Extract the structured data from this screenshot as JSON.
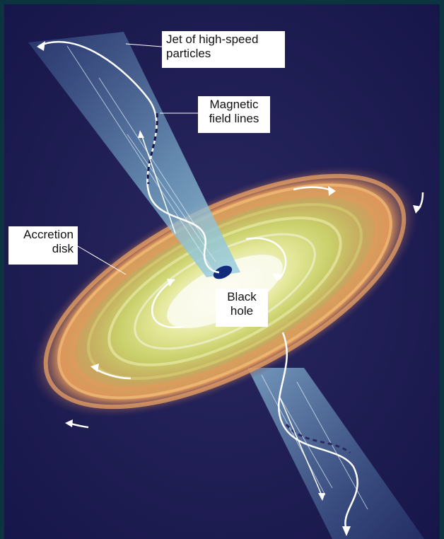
{
  "labels": {
    "jet": "Jet of high-speed\nparticles",
    "field_lines": "Magnetic\nfield lines",
    "accretion_disk": "Accretion\ndisk",
    "black_hole": "Black\nhole"
  },
  "colors": {
    "border": "#0c3340",
    "space": "#1c1a4a",
    "disk_core": "#fafbe8",
    "disk_mid": "#d6d86a",
    "disk_outer": "#e09a5a",
    "jet": "#6fa6c8",
    "arrow": "#ffffff"
  },
  "icons": {
    "field_lines": "dashed-sinusoid-arrow",
    "rotation": "curved-arrow"
  }
}
